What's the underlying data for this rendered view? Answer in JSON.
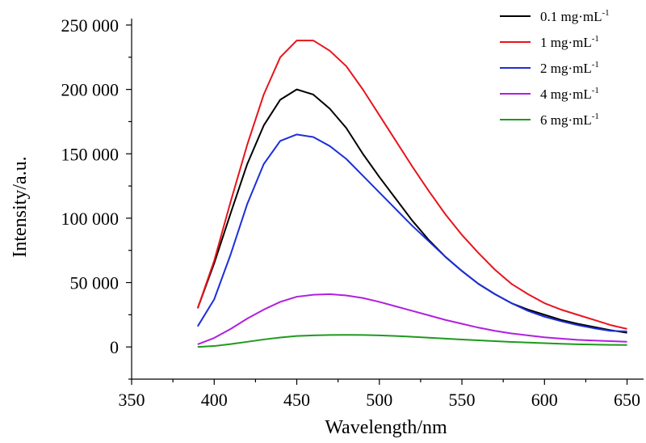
{
  "chart_data": {
    "type": "line",
    "title": "",
    "xlabel": "Wavelength/nm",
    "ylabel": "Intensity/a.u.",
    "xlim": [
      350,
      660
    ],
    "ylim": [
      -25000,
      255000
    ],
    "x_ticks": [
      350,
      400,
      450,
      500,
      550,
      600,
      650
    ],
    "y_ticks": [
      0,
      50000,
      100000,
      150000,
      200000,
      250000
    ],
    "x_tick_labels": [
      "350",
      "400",
      "450",
      "500",
      "550",
      "600",
      "650"
    ],
    "y_tick_labels": [
      "0",
      "50 000",
      "100 000",
      "150 000",
      "200 000",
      "250 000"
    ],
    "grid": false,
    "legend_position": "top-right",
    "x": [
      390,
      400,
      410,
      420,
      430,
      440,
      450,
      460,
      470,
      480,
      490,
      500,
      510,
      520,
      530,
      540,
      550,
      560,
      570,
      580,
      590,
      600,
      610,
      620,
      630,
      640,
      650
    ],
    "series": [
      {
        "name": "0.1 mg·mL",
        "name_sup": "-1",
        "color": "#000000",
        "values": [
          30000,
          65000,
          104000,
          142000,
          172000,
          192000,
          200000,
          196000,
          185000,
          170000,
          150000,
          132000,
          115000,
          98000,
          83000,
          70000,
          59000,
          49000,
          41000,
          34000,
          29000,
          25000,
          21000,
          18000,
          15500,
          13000,
          11000
        ]
      },
      {
        "name": "1 mg·mL",
        "name_sup": "-1",
        "color": "#e8141c",
        "values": [
          30000,
          67000,
          113000,
          157000,
          196000,
          225000,
          238000,
          238000,
          230000,
          218000,
          200000,
          180000,
          160000,
          140000,
          121000,
          103000,
          87000,
          73000,
          60000,
          49000,
          41000,
          34000,
          29000,
          25000,
          21000,
          17000,
          14000
        ]
      },
      {
        "name": "2 mg·mL",
        "name_sup": "-1",
        "color": "#1c2fd8",
        "values": [
          16000,
          37000,
          72000,
          111000,
          142000,
          160000,
          165000,
          163000,
          156000,
          146000,
          133000,
          120000,
          107000,
          94000,
          82000,
          70000,
          59000,
          49000,
          41000,
          34000,
          28000,
          23500,
          20000,
          17000,
          14500,
          12500,
          12000
        ]
      },
      {
        "name": "4 mg·mL",
        "name_sup": "-1",
        "color": "#b11fe0",
        "values": [
          2000,
          7000,
          14000,
          22000,
          29000,
          35000,
          39000,
          40500,
          41000,
          40000,
          38000,
          35000,
          31500,
          28000,
          24500,
          21000,
          18000,
          15000,
          12500,
          10500,
          9000,
          7500,
          6500,
          5500,
          5000,
          4500,
          4000
        ]
      },
      {
        "name": "6 mg·mL",
        "name_sup": "-1",
        "color": "#1e9a1e",
        "values": [
          0,
          700,
          2200,
          4000,
          5800,
          7300,
          8500,
          9000,
          9300,
          9400,
          9300,
          9000,
          8500,
          7900,
          7200,
          6500,
          5800,
          5100,
          4500,
          3900,
          3400,
          2900,
          2500,
          2100,
          1800,
          1600,
          1500
        ]
      }
    ]
  }
}
